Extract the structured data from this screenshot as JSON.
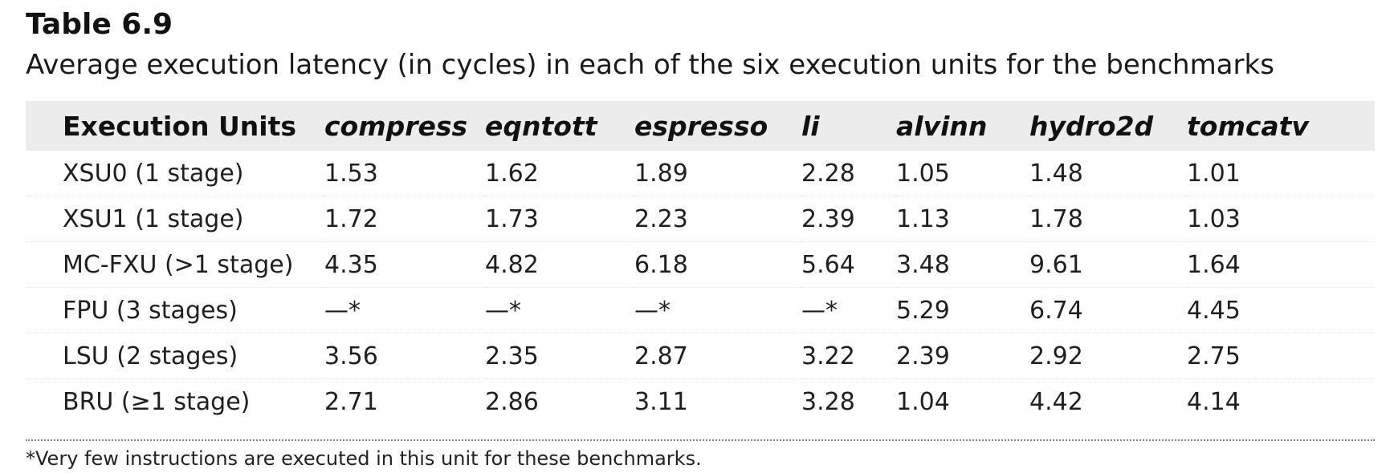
{
  "table": {
    "label": "Table 6.9",
    "caption": "Average execution latency (in cycles) in each of the six execution units for the benchmarks",
    "columns": [
      "Execution Units",
      "compress",
      "eqntott",
      "espresso",
      "li",
      "alvinn",
      "hydro2d",
      "tomcatv"
    ],
    "rows": [
      [
        "XSU0 (1 stage)",
        "1.53",
        "1.62",
        "1.89",
        "2.28",
        "1.05",
        "1.48",
        "1.01"
      ],
      [
        "XSU1 (1 stage)",
        "1.72",
        "1.73",
        "2.23",
        "2.39",
        "1.13",
        "1.78",
        "1.03"
      ],
      [
        "MC-FXU (>1 stage)",
        "4.35",
        "4.82",
        "6.18",
        "5.64",
        "3.48",
        "9.61",
        "1.64"
      ],
      [
        "FPU (3 stages)",
        "—*",
        "—*",
        "—*",
        "—*",
        "5.29",
        "6.74",
        "4.45"
      ],
      [
        "LSU (2 stages)",
        "3.56",
        "2.35",
        "2.87",
        "3.22",
        "2.39",
        "2.92",
        "2.75"
      ],
      [
        "BRU (≥1 stage)",
        "2.71",
        "2.86",
        "3.11",
        "3.28",
        "1.04",
        "4.42",
        "4.14"
      ]
    ],
    "footnote": "*Very few instructions are executed in this unit for these benchmarks."
  }
}
